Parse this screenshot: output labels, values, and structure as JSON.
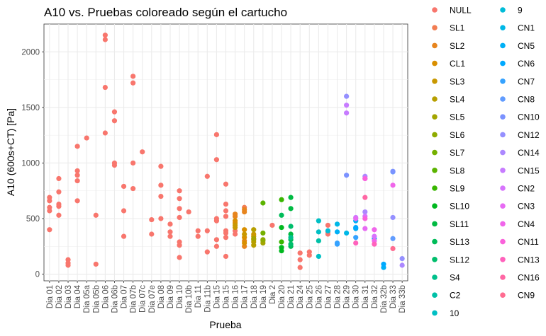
{
  "chart_data": {
    "type": "scatter",
    "title": "A10 vs. Pruebas coloreado según el cartucho",
    "xlabel": "Prueba",
    "ylabel": "A10 (600s+CT) [Pa]",
    "ylim": [
      -60,
      2250
    ],
    "yticks": [
      0,
      500,
      1000,
      1500,
      2000
    ],
    "grid": true,
    "legend_position": "right",
    "categories": [
      "Dia 01",
      "Dia 02",
      "Dia 03",
      "Dia 04",
      "Dia 05a",
      "Dia 05b",
      "Dia 06",
      "Dia 06b",
      "Dia 07",
      "Dia 07b",
      "Dia 07c",
      "Dia 07e",
      "Dia 08",
      "Dia 09",
      "Dia 10",
      "Dia 10b",
      "Dia 11",
      "Dia 11b",
      "Dia 15",
      "Dia 15",
      "Dia 16",
      "Dia 17",
      "Dia 18",
      "Dia 19",
      "Dia 2",
      "Dia 20",
      "Dia 21",
      "Dia 24",
      "Dia 25",
      "Dia 26",
      "Dia 27",
      "Dia 28",
      "Dia 29",
      "Dia 30",
      "Dia 31",
      "Dia 32",
      "Dia 32b",
      "Dia 33",
      "Dia 33b"
    ],
    "series": [
      {
        "name": "NULL",
        "color": "#F8766D",
        "points": [
          [
            1,
            400
          ],
          [
            1,
            570
          ],
          [
            1,
            600
          ],
          [
            1,
            660
          ],
          [
            1,
            690
          ],
          [
            2,
            530
          ],
          [
            2,
            610
          ],
          [
            2,
            630
          ],
          [
            2,
            740
          ],
          [
            2,
            860
          ],
          [
            3,
            80
          ],
          [
            3,
            100
          ],
          [
            3,
            130
          ],
          [
            4,
            660
          ],
          [
            4,
            840
          ],
          [
            4,
            890
          ],
          [
            4,
            930
          ],
          [
            4,
            1150
          ],
          [
            5,
            1225
          ],
          [
            6,
            90
          ],
          [
            6,
            530
          ],
          [
            7,
            1270
          ],
          [
            7,
            1680
          ],
          [
            7,
            2110
          ],
          [
            7,
            2150
          ],
          [
            8,
            980
          ],
          [
            8,
            1000
          ],
          [
            8,
            1380
          ],
          [
            8,
            1460
          ],
          [
            9,
            340
          ],
          [
            9,
            570
          ],
          [
            9,
            790
          ],
          [
            10,
            770
          ],
          [
            10,
            1000
          ],
          [
            10,
            1720
          ],
          [
            10,
            1780
          ],
          [
            11,
            1100
          ],
          [
            12,
            360
          ],
          [
            12,
            490
          ],
          [
            13,
            500
          ],
          [
            13,
            700
          ],
          [
            13,
            800
          ],
          [
            13,
            970
          ],
          [
            14,
            340
          ],
          [
            14,
            380
          ],
          [
            14,
            450
          ],
          [
            15,
            150
          ],
          [
            15,
            260
          ],
          [
            15,
            290
          ],
          [
            15,
            510
          ],
          [
            15,
            590
          ],
          [
            15,
            680
          ],
          [
            15,
            750
          ],
          [
            16,
            560
          ],
          [
            17,
            340
          ],
          [
            17,
            390
          ],
          [
            18,
            200
          ],
          [
            18,
            390
          ],
          [
            18,
            880
          ],
          [
            19,
            250
          ],
          [
            19,
            310
          ],
          [
            19,
            480
          ],
          [
            19,
            500
          ],
          [
            19,
            1030
          ],
          [
            19,
            1255
          ],
          [
            20,
            160
          ],
          [
            20,
            330
          ],
          [
            20,
            370
          ],
          [
            20,
            390
          ],
          [
            20,
            520
          ],
          [
            20,
            570
          ],
          [
            20,
            630
          ],
          [
            20,
            810
          ],
          [
            21,
            360
          ],
          [
            21,
            390
          ],
          [
            25,
            440
          ],
          [
            28,
            60
          ],
          [
            28,
            130
          ],
          [
            28,
            190
          ],
          [
            29,
            170
          ],
          [
            29,
            200
          ],
          [
            31,
            360
          ],
          [
            31,
            380
          ],
          [
            31,
            440
          ]
        ]
      },
      {
        "name": "SL1",
        "color": "#F27D52",
        "points": [
          [
            22,
            600
          ]
        ]
      },
      {
        "name": "SL2",
        "color": "#E7851E",
        "points": [
          [
            21,
            520
          ],
          [
            21,
            540
          ],
          [
            22,
            250
          ],
          [
            22,
            300
          ],
          [
            22,
            560
          ],
          [
            22,
            580
          ]
        ]
      },
      {
        "name": "CL1",
        "color": "#D98F00",
        "points": [
          [
            21,
            480
          ],
          [
            21,
            460
          ],
          [
            22,
            280
          ],
          [
            22,
            330
          ],
          [
            22,
            400
          ]
        ]
      },
      {
        "name": "SL3",
        "color": "#C99800",
        "points": [
          [
            21,
            420
          ],
          [
            21,
            440
          ],
          [
            22,
            360
          ],
          [
            23,
            340
          ],
          [
            23,
            360
          ]
        ]
      },
      {
        "name": "SL4",
        "color": "#B79F00",
        "points": [
          [
            23,
            260
          ],
          [
            23,
            290
          ],
          [
            23,
            310
          ],
          [
            23,
            400
          ]
        ]
      },
      {
        "name": "SL5",
        "color": "#A3A500",
        "points": [
          [
            23,
            320
          ],
          [
            24,
            280
          ],
          [
            24,
            300
          ]
        ]
      },
      {
        "name": "SL6",
        "color": "#8EAB00",
        "points": [
          [
            24,
            310
          ]
        ]
      },
      {
        "name": "SL7",
        "color": "#75B000",
        "points": [
          [
            24,
            370
          ]
        ]
      },
      {
        "name": "SL8",
        "color": "#5BB300",
        "points": [
          [
            24,
            640
          ]
        ]
      },
      {
        "name": "SL9",
        "color": "#39B600",
        "points": [
          [
            26,
            670
          ],
          [
            26,
            290
          ]
        ]
      },
      {
        "name": "SL10",
        "color": "#00B81F",
        "points": [
          [
            26,
            240
          ],
          [
            26,
            210
          ],
          [
            26,
            420
          ]
        ]
      },
      {
        "name": "SL11",
        "color": "#00BA42",
        "points": [
          [
            27,
            690
          ],
          [
            27,
            590
          ],
          [
            27,
            360
          ]
        ]
      },
      {
        "name": "SL13",
        "color": "#00BC59",
        "points": [
          [
            27,
            250
          ],
          [
            27,
            310
          ],
          [
            26,
            530
          ]
        ]
      },
      {
        "name": "SL12",
        "color": "#00BE6C",
        "points": [
          [
            27,
            270
          ],
          [
            27,
            430
          ]
        ]
      },
      {
        "name": "S4",
        "color": "#00C08B",
        "points": [
          [
            27,
            330
          ]
        ]
      },
      {
        "name": "C2",
        "color": "#00C0A7",
        "points": [
          [
            30,
            300
          ]
        ]
      },
      {
        "name": "10",
        "color": "#00BFC4",
        "points": [
          [
            30,
            480
          ],
          [
            30,
            380
          ],
          [
            30,
            160
          ]
        ]
      },
      {
        "name": "9",
        "color": "#00BCD8",
        "points": [
          [
            31,
            390
          ]
        ]
      },
      {
        "name": "CN1",
        "color": "#00B8E7",
        "points": [
          [
            32,
            450
          ],
          [
            33,
            370
          ]
        ]
      },
      {
        "name": "CN5",
        "color": "#00B0F6",
        "points": [
          [
            32,
            380
          ],
          [
            34,
            480
          ],
          [
            34,
            410
          ],
          [
            37,
            60
          ]
        ]
      },
      {
        "name": "CN6",
        "color": "#00A9FF",
        "points": [
          [
            34,
            420
          ],
          [
            36,
            320
          ],
          [
            37,
            90
          ]
        ]
      },
      {
        "name": "CN7",
        "color": "#35A2FF",
        "points": [
          [
            32,
            280
          ],
          [
            32,
            270
          ],
          [
            34,
            330
          ]
        ]
      },
      {
        "name": "CN8",
        "color": "#619CFF",
        "points": [
          [
            38,
            320
          ],
          [
            38,
            920
          ]
        ]
      },
      {
        "name": "CN10",
        "color": "#7B92FF",
        "points": [
          [
            33,
            890
          ],
          [
            38,
            925
          ]
        ]
      },
      {
        "name": "CN12",
        "color": "#9590FF",
        "points": [
          [
            33,
            1600
          ],
          [
            38,
            510
          ],
          [
            39,
            140
          ]
        ]
      },
      {
        "name": "CN14",
        "color": "#AC88FF",
        "points": [
          [
            35,
            880
          ],
          [
            35,
            560
          ],
          [
            39,
            80
          ]
        ]
      },
      {
        "name": "CN15",
        "color": "#C77CFF",
        "points": [
          [
            33,
            1450
          ],
          [
            33,
            1520
          ],
          [
            34,
            510
          ]
        ]
      },
      {
        "name": "CN2",
        "color": "#D774FD",
        "points": [
          [
            35,
            860
          ],
          [
            35,
            520
          ],
          [
            36,
            340
          ]
        ]
      },
      {
        "name": "CN3",
        "color": "#E76BF3",
        "points": [
          [
            34,
            500
          ],
          [
            35,
            410
          ]
        ]
      },
      {
        "name": "CN4",
        "color": "#F066EA",
        "points": [
          [
            36,
            400
          ],
          [
            36,
            300
          ],
          [
            38,
            800
          ]
        ]
      },
      {
        "name": "CN11",
        "color": "#FA62DB",
        "points": [
          [
            35,
            500
          ],
          [
            35,
            860
          ]
        ]
      },
      {
        "name": "CN13",
        "color": "#FF62BC",
        "points": [
          [
            34,
            280
          ],
          [
            36,
            270
          ]
        ]
      },
      {
        "name": "CN16",
        "color": "#FF67A4",
        "points": [
          [
            35,
            690
          ]
        ]
      },
      {
        "name": "CN9",
        "color": "#FF6C91",
        "points": [
          [
            38,
            230
          ]
        ]
      }
    ]
  }
}
